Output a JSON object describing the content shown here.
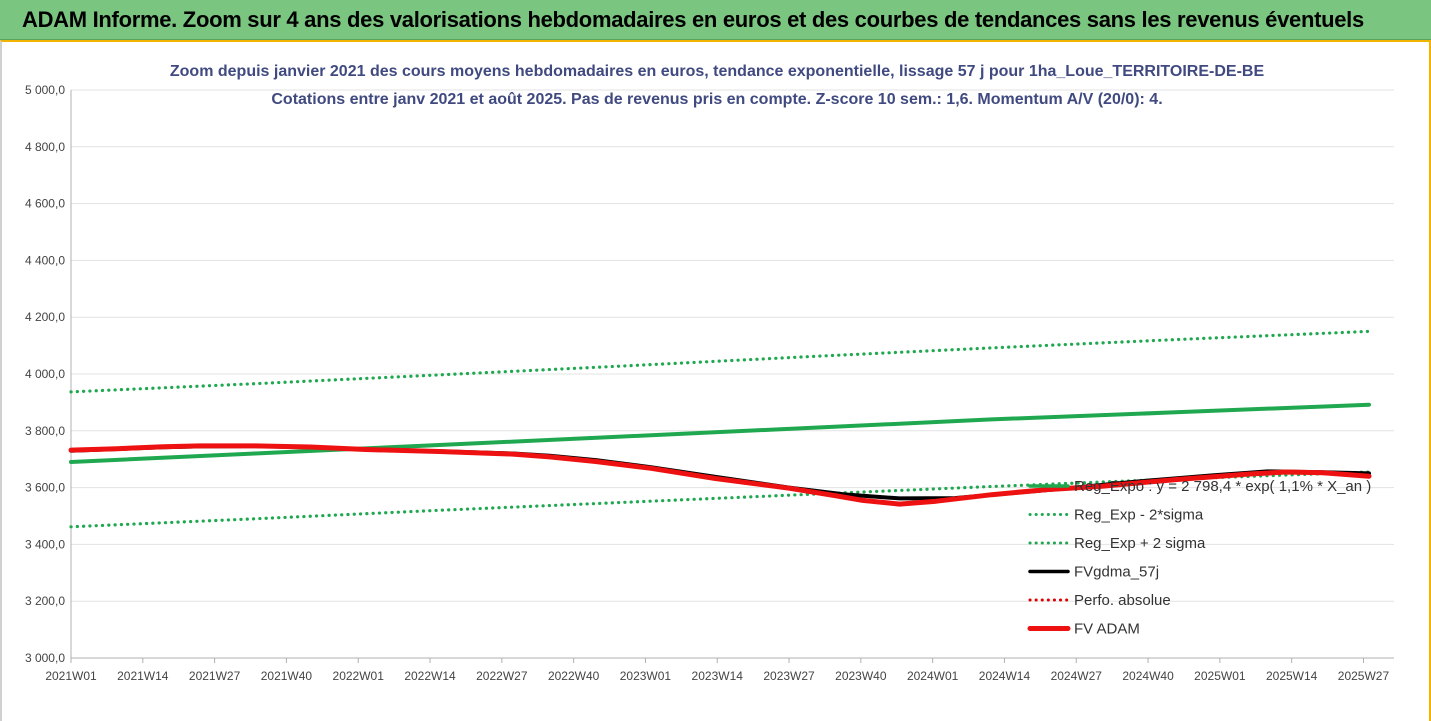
{
  "banner": {
    "title": "ADAM Informe. Zoom sur 4 ans des valorisations hebdomadaires en euros et des courbes de tendances sans les revenus éventuels"
  },
  "chart_data": {
    "type": "line",
    "title": "Zoom depuis janvier 2021 des cours moyens hebdomadaires en euros, tendance exponentielle, lissage 57 j pour 1ha_Loue_TERRITOIRE-DE-BE",
    "subtitle": "Cotations entre janv 2021 et août 2025.  Pas de revenus pris en compte. Z-score 10 sem.: 1,6. Momentum A/V (20/0): 4.",
    "xlabel": "",
    "ylabel": "",
    "ylim": [
      3000,
      5000
    ],
    "y_ticks": [
      "5 000,0",
      "4 800,0",
      "4 600,0",
      "4 400,0",
      "4 200,0",
      "4 000,0",
      "3 800,0",
      "3 600,0",
      "3 400,0",
      "3 200,0",
      "3 000,0"
    ],
    "x_ticks": [
      "2021W01",
      "2021W14",
      "2021W27",
      "2021W40",
      "2022W01",
      "2022W14",
      "2022W27",
      "2022W40",
      "2023W01",
      "2023W14",
      "2023W27",
      "2023W40",
      "2024W01",
      "2024W14",
      "2024W27",
      "2024W40",
      "2025W01",
      "2025W14",
      "2025W27"
    ],
    "grid": "horizontal",
    "legend_position": "right",
    "series": [
      {
        "name": "Reg_Expo : y = 2 798,4 * exp( 1,1% * X_an )",
        "style": "solid",
        "color": "#1fa84f",
        "points": [
          [
            0,
            3690
          ],
          [
            20,
            3720
          ],
          [
            40,
            3750
          ],
          [
            60,
            3780
          ],
          [
            80,
            3810
          ],
          [
            100,
            3840
          ],
          [
            120,
            3865
          ],
          [
            141,
            3892
          ]
        ]
      },
      {
        "name": "Reg_Exp - 2*sigma",
        "style": "dotted",
        "color": "#1fa84f",
        "points": [
          [
            0,
            3462
          ],
          [
            20,
            3490
          ],
          [
            40,
            3520
          ],
          [
            60,
            3548
          ],
          [
            80,
            3576
          ],
          [
            100,
            3604
          ],
          [
            120,
            3630
          ],
          [
            141,
            3655
          ]
        ]
      },
      {
        "name": "Reg_Exp + 2 sigma",
        "style": "dotted",
        "color": "#1fa84f",
        "points": [
          [
            0,
            3937
          ],
          [
            20,
            3966
          ],
          [
            40,
            3997
          ],
          [
            60,
            4028
          ],
          [
            80,
            4061
          ],
          [
            100,
            4092
          ],
          [
            120,
            4121
          ],
          [
            141,
            4150
          ]
        ]
      },
      {
        "name": "FVgdma_57j",
        "style": "solid",
        "color": "#000000",
        "points": [
          [
            0,
            3730
          ],
          [
            5,
            3736
          ],
          [
            10,
            3742
          ],
          [
            14,
            3745
          ],
          [
            20,
            3746
          ],
          [
            26,
            3742
          ],
          [
            32,
            3735
          ],
          [
            40,
            3728
          ],
          [
            48,
            3720
          ],
          [
            52,
            3712
          ],
          [
            57,
            3697
          ],
          [
            63,
            3672
          ],
          [
            70,
            3638
          ],
          [
            78,
            3600
          ],
          [
            84,
            3576
          ],
          [
            90,
            3562
          ],
          [
            96,
            3563
          ],
          [
            102,
            3580
          ],
          [
            108,
            3597
          ],
          [
            116,
            3622
          ],
          [
            124,
            3643
          ],
          [
            130,
            3657
          ],
          [
            136,
            3654
          ],
          [
            141,
            3650
          ]
        ]
      },
      {
        "name": "Perfo. absolue",
        "style": "dotted",
        "color": "#e00000",
        "points": []
      },
      {
        "name": "FV ADAM",
        "style": "solid",
        "color": "#ee1111",
        "points": [
          [
            0,
            3732
          ],
          [
            5,
            3737
          ],
          [
            10,
            3744
          ],
          [
            14,
            3747
          ],
          [
            20,
            3747
          ],
          [
            26,
            3743
          ],
          [
            32,
            3734
          ],
          [
            40,
            3727
          ],
          [
            48,
            3718
          ],
          [
            52,
            3708
          ],
          [
            57,
            3692
          ],
          [
            63,
            3668
          ],
          [
            70,
            3632
          ],
          [
            78,
            3598
          ],
          [
            83,
            3572
          ],
          [
            86,
            3555
          ],
          [
            90,
            3542
          ],
          [
            94,
            3552
          ],
          [
            100,
            3575
          ],
          [
            106,
            3593
          ],
          [
            112,
            3605
          ],
          [
            120,
            3628
          ],
          [
            128,
            3648
          ],
          [
            132,
            3655
          ],
          [
            136,
            3652
          ],
          [
            141,
            3640
          ]
        ]
      }
    ]
  }
}
